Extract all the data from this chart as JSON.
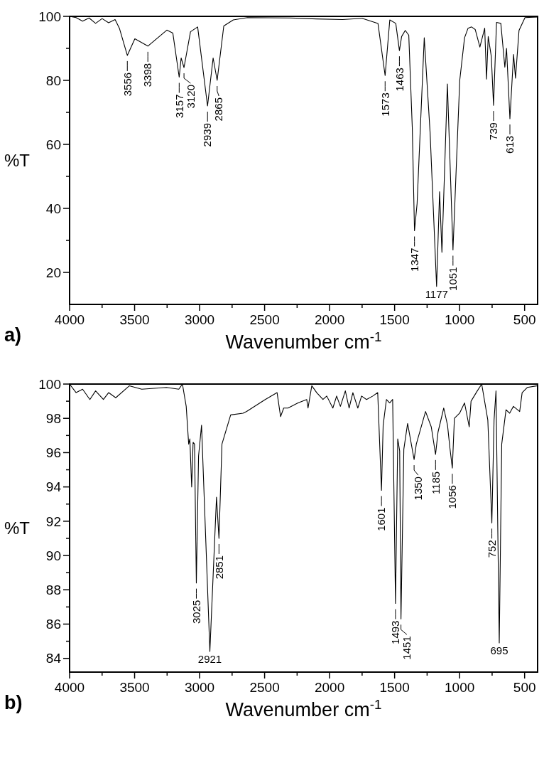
{
  "chart_data": [
    {
      "type": "line",
      "title": "a)",
      "xlabel": "Wavenumber cm$^{-1}$",
      "ylabel": "%T",
      "xlim": [
        4000,
        400
      ],
      "ylim": [
        10,
        100
      ],
      "xticks": [
        4000,
        {
          "value": 3750,
          "label": null
        },
        3500,
        {
          "value": 3250,
          "label": null
        },
        3000,
        {
          "value": 2750,
          "label": null
        },
        2500,
        {
          "value": 2250,
          "label": null
        },
        2000,
        {
          "value": 1750,
          "label": null
        },
        1500,
        {
          "value": 1250,
          "label": null
        },
        1000,
        {
          "value": 750,
          "label": null
        },
        500
      ],
      "yticks": [
        20,
        {
          "value": 30,
          "label": null
        },
        40,
        {
          "value": 50,
          "label": null
        },
        60,
        {
          "value": 70,
          "label": null
        },
        80,
        {
          "value": 90,
          "label": null
        },
        100
      ],
      "grid": false,
      "marker": "none",
      "line_style": "solid",
      "series": [
        {
          "color": "#000000",
          "x": [
            4000,
            3950,
            3900,
            3850,
            3800,
            3750,
            3700,
            3650,
            3617,
            3556,
            3498,
            3398,
            3252,
            3206,
            3157,
            3142,
            3120,
            3070,
            3015,
            2939,
            2896,
            2865,
            2814,
            2741,
            2632,
            2300,
            2100,
            1900,
            1750,
            1628,
            1573,
            1537,
            1491,
            1463,
            1446,
            1418,
            1391,
            1364,
            1347,
            1327,
            1272,
            1227,
            1177,
            1154,
            1136,
            1094,
            1051,
            999,
            962,
            935,
            908,
            880,
            844,
            807,
            793,
            780,
            756,
            739,
            716,
            683,
            652,
            639,
            613,
            585,
            570,
            543,
            497,
            400
          ],
          "values": [
            100,
            99.6,
            98.5,
            99.5,
            97.8,
            99.3,
            98,
            99,
            96.3,
            87.8,
            93,
            90.7,
            95.7,
            94.8,
            81,
            87,
            84,
            95.2,
            96.7,
            72,
            87,
            80,
            97,
            98.9,
            99.6,
            99.5,
            99.2,
            99,
            99.4,
            97.8,
            81.5,
            98.9,
            97.8,
            89.3,
            93.7,
            95.6,
            94.1,
            65.2,
            33,
            41.5,
            93.3,
            63.7,
            15.6,
            45.2,
            26.3,
            78.9,
            27,
            80,
            93.3,
            96.3,
            96.7,
            95.9,
            90.4,
            96.3,
            80.4,
            93.7,
            87.4,
            72.2,
            98.1,
            97.8,
            84.1,
            90,
            68,
            88.1,
            80.7,
            95.6,
            99.6,
            99.8
          ]
        }
      ],
      "annotations": [
        {
          "text": "3556",
          "x": 3556,
          "y": 87.8
        },
        {
          "text": "3398",
          "x": 3398,
          "y": 90.7
        },
        {
          "text": "3157",
          "x": 3157,
          "y": 81
        },
        {
          "text": "3120",
          "x": 3120,
          "y": 84
        },
        {
          "text": "2939",
          "x": 2939,
          "y": 72
        },
        {
          "text": "2865",
          "x": 2865,
          "y": 80
        },
        {
          "text": "1573",
          "x": 1573,
          "y": 81.5
        },
        {
          "text": "1463",
          "x": 1463,
          "y": 89.3
        },
        {
          "text": "1347",
          "x": 1347,
          "y": 33
        },
        {
          "text": "1177",
          "x": 1177,
          "y": 15.6
        },
        {
          "text": "1051",
          "x": 1051,
          "y": 27
        },
        {
          "text": "739",
          "x": 739,
          "y": 72.2
        },
        {
          "text": "613",
          "x": 613,
          "y": 68
        }
      ]
    },
    {
      "type": "line",
      "title": "b)",
      "xlabel": "Wavenumber cm$^{-1}$",
      "ylabel": "%T",
      "xlim": [
        4000,
        400
      ],
      "ylim": [
        83.2,
        100
      ],
      "xticks": [
        4000,
        {
          "value": 3750,
          "label": null
        },
        3500,
        {
          "value": 3250,
          "label": null
        },
        3000,
        {
          "value": 2750,
          "label": null
        },
        2500,
        {
          "value": 2250,
          "label": null
        },
        2000,
        {
          "value": 1750,
          "label": null
        },
        1500,
        {
          "value": 1250,
          "label": null
        },
        1000,
        {
          "value": 750,
          "label": null
        },
        500
      ],
      "yticks": [
        84,
        {
          "value": 85,
          "label": null
        },
        86,
        {
          "value": 87,
          "label": null
        },
        88,
        {
          "value": 89,
          "label": null
        },
        90,
        {
          "value": 91,
          "label": null
        },
        92,
        {
          "value": 93,
          "label": null
        },
        94,
        {
          "value": 95,
          "label": null
        },
        96,
        {
          "value": 97,
          "label": null
        },
        98,
        {
          "value": 99,
          "label": null
        },
        100
      ],
      "grid": false,
      "marker": "none",
      "line_style": "solid",
      "series": [
        {
          "color": "#000000",
          "x": [
            4000,
            3950,
            3900,
            3844,
            3800,
            3740,
            3700,
            3645,
            3540,
            3445,
            3255,
            3160,
            3132,
            3103,
            3084,
            3075,
            3061,
            3050,
            3039,
            3025,
            3008,
            2985,
            2921,
            2870,
            2851,
            2828,
            2761,
            2666,
            2638,
            2495,
            2404,
            2377,
            2353,
            2320,
            2243,
            2176,
            2166,
            2137,
            2099,
            2051,
            2022,
            1975,
            1946,
            1917,
            1879,
            1850,
            1821,
            1783,
            1754,
            1716,
            1668,
            1630,
            1601,
            1588,
            1563,
            1538,
            1515,
            1493,
            1476,
            1461,
            1451,
            1429,
            1400,
            1350,
            1333,
            1262,
            1218,
            1185,
            1166,
            1122,
            1093,
            1075,
            1056,
            1040,
            1000,
            962,
            926,
            912,
            864,
            830,
            783,
            752,
            735,
            720,
            695,
            676,
            643,
            615,
            586,
            538,
            519,
            480,
            400
          ],
          "values": [
            100,
            99.5,
            99.7,
            99.1,
            99.6,
            99.1,
            99.5,
            99.2,
            99.9,
            99.7,
            99.8,
            99.7,
            100,
            98.7,
            96.5,
            96.8,
            94,
            96.6,
            96.5,
            88.4,
            95.8,
            97.6,
            84.4,
            93.4,
            91,
            96.5,
            98.2,
            98.3,
            98.4,
            99.1,
            99.5,
            98.1,
            98.6,
            98.6,
            98.9,
            99.1,
            98.6,
            99.9,
            99.5,
            99.1,
            99.3,
            98.6,
            99.3,
            98.7,
            99.6,
            98.6,
            99.5,
            98.6,
            99.3,
            99.1,
            99.3,
            99.5,
            93.8,
            97.6,
            99.1,
            98.9,
            99.1,
            87.2,
            96.8,
            96.1,
            86.3,
            96.2,
            97.7,
            95.6,
            96.5,
            98.4,
            97.5,
            95.9,
            97.2,
            98.6,
            97.6,
            96.3,
            95.1,
            98,
            98.3,
            98.9,
            97.5,
            99,
            99.6,
            100,
            97.9,
            91.9,
            97.9,
            99.6,
            84.9,
            96.5,
            98.5,
            98.3,
            98.7,
            98.4,
            99.5,
            99.8,
            99.9
          ]
        }
      ],
      "annotations": [
        {
          "text": "3025",
          "x": 3025,
          "y": 88.4
        },
        {
          "text": "2921",
          "x": 2921,
          "y": 84.4
        },
        {
          "text": "2851",
          "x": 2851,
          "y": 91
        },
        {
          "text": "1601",
          "x": 1601,
          "y": 93.8
        },
        {
          "text": "1493",
          "x": 1493,
          "y": 87.2
        },
        {
          "text": "1451",
          "x": 1451,
          "y": 86.3
        },
        {
          "text": "1350",
          "x": 1350,
          "y": 95.6
        },
        {
          "text": "1185",
          "x": 1185,
          "y": 95.9
        },
        {
          "text": "1056",
          "x": 1056,
          "y": 95.1
        },
        {
          "text": "752",
          "x": 752,
          "y": 91.9
        },
        {
          "text": "695",
          "x": 695,
          "y": 84.9
        }
      ]
    }
  ]
}
